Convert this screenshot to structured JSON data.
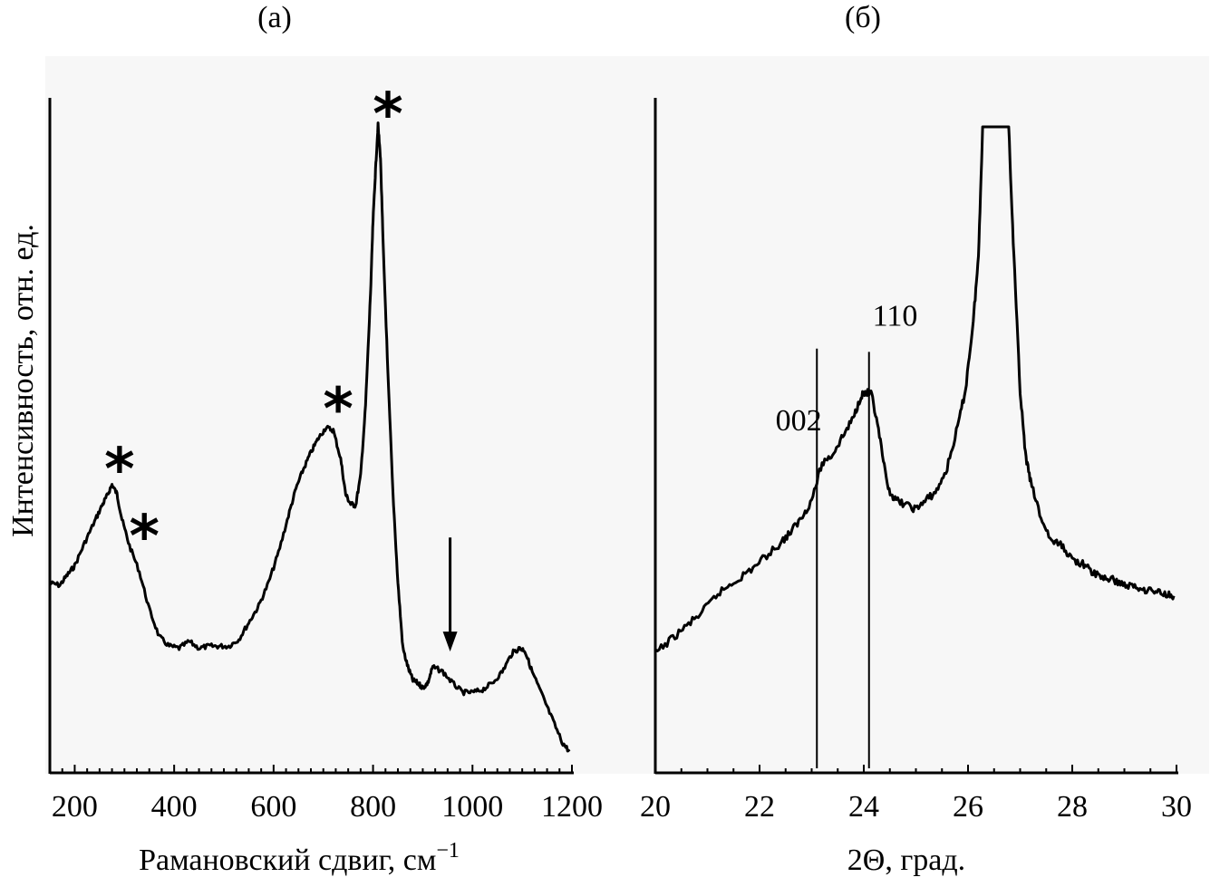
{
  "figure": {
    "background": "#f7f7f7",
    "line_color": "#000000"
  },
  "chart_data": [
    {
      "panel_label": "(а)",
      "type": "line",
      "xlabel_main": "Рамановский сдвиг, см",
      "xlabel_sup": "−1",
      "ylabel": "Интенсивность, отн. ед.",
      "xlim": [
        150,
        1200
      ],
      "ylim": [
        0,
        1
      ],
      "xticks": [
        200,
        400,
        600,
        800,
        1000,
        1200
      ],
      "xtick_labels": [
        "200",
        "400",
        "600",
        "800",
        "1000",
        "1200"
      ],
      "y_ticks_shown": false,
      "series": [
        {
          "x": [
            150,
            170,
            185,
            200,
            220,
            240,
            255,
            265,
            275,
            285,
            295,
            310,
            330,
            350,
            370,
            390,
            410,
            430,
            450,
            470,
            490,
            510,
            530,
            550,
            570,
            590,
            610,
            630,
            645,
            660,
            675,
            690,
            705,
            720,
            735,
            745,
            755,
            765,
            775,
            785,
            795,
            800,
            805,
            810,
            815,
            820,
            830,
            840,
            850,
            860,
            870,
            880,
            890,
            900,
            910,
            920,
            940,
            960,
            980,
            1000,
            1020,
            1040,
            1060,
            1080,
            1095,
            1105,
            1120,
            1140,
            1160,
            1180,
            1195
          ],
          "y": [
            0.237,
            0.234,
            0.249,
            0.263,
            0.297,
            0.329,
            0.353,
            0.367,
            0.384,
            0.37,
            0.332,
            0.293,
            0.254,
            0.198,
            0.157,
            0.143,
            0.14,
            0.15,
            0.14,
            0.143,
            0.143,
            0.143,
            0.153,
            0.178,
            0.203,
            0.238,
            0.283,
            0.338,
            0.378,
            0.407,
            0.432,
            0.453,
            0.469,
            0.465,
            0.422,
            0.369,
            0.355,
            0.353,
            0.397,
            0.502,
            0.67,
            0.778,
            0.853,
            0.92,
            0.871,
            0.749,
            0.547,
            0.372,
            0.237,
            0.14,
            0.112,
            0.092,
            0.088,
            0.081,
            0.088,
            0.112,
            0.105,
            0.088,
            0.074,
            0.074,
            0.078,
            0.088,
            0.105,
            0.133,
            0.14,
            0.137,
            0.105,
            0.07,
            0.035,
            0.0,
            -0.014
          ]
        }
      ],
      "annotations": [
        {
          "text": "*",
          "x": 290,
          "y": 0.415
        },
        {
          "text": "*",
          "x": 340,
          "y": 0.315
        },
        {
          "text": "*",
          "x": 730,
          "y": 0.505
        },
        {
          "text": "*",
          "x": 830,
          "y": 0.97
        }
      ],
      "arrow": {
        "x": 955,
        "y_from": 0.305,
        "y_to": 0.135
      }
    },
    {
      "panel_label": "(б)",
      "type": "line",
      "xlabel_main": "2Θ, град.",
      "ylabel": "",
      "xlim": [
        20,
        30
      ],
      "ylim": [
        0,
        1
      ],
      "xticks": [
        20,
        22,
        24,
        26,
        28,
        30
      ],
      "xtick_labels": [
        "20",
        "22",
        "24",
        "26",
        "28",
        "30"
      ],
      "y_ticks_shown": false,
      "series": [
        {
          "x": [
            20.0,
            20.3,
            20.6,
            20.9,
            21.2,
            21.5,
            21.8,
            22.1,
            22.4,
            22.6,
            22.8,
            23.0,
            23.2,
            23.4,
            23.6,
            23.8,
            23.95,
            24.05,
            24.15,
            24.3,
            24.45,
            24.6,
            24.8,
            25.0,
            25.2,
            25.4,
            25.6,
            25.8,
            25.95,
            26.1,
            26.2,
            26.28,
            26.5,
            26.78,
            26.88,
            27.0,
            27.1,
            27.2,
            27.4,
            27.6,
            27.8,
            28.0,
            28.2,
            28.4,
            28.6,
            28.8,
            29.0,
            29.2,
            29.4,
            29.6,
            29.8,
            29.95
          ],
          "y": [
            0.193,
            0.214,
            0.235,
            0.256,
            0.284,
            0.302,
            0.319,
            0.34,
            0.362,
            0.379,
            0.4,
            0.428,
            0.484,
            0.498,
            0.526,
            0.554,
            0.589,
            0.593,
            0.589,
            0.526,
            0.449,
            0.428,
            0.421,
            0.414,
            0.428,
            0.442,
            0.477,
            0.54,
            0.596,
            0.702,
            0.8,
            1.0,
            1.0,
            1.0,
            0.8,
            0.596,
            0.498,
            0.456,
            0.4,
            0.365,
            0.358,
            0.337,
            0.33,
            0.316,
            0.309,
            0.305,
            0.298,
            0.295,
            0.291,
            0.288,
            0.284,
            0.281
          ]
        }
      ],
      "annotations": [
        {
          "text": "002",
          "x": 22.75,
          "y": 0.535
        },
        {
          "text": "110",
          "x": 24.6,
          "y": 0.695
        }
      ],
      "reference_lines": [
        {
          "x": 23.1,
          "y_top": 0.66
        },
        {
          "x": 24.1,
          "y_top": 0.655
        }
      ]
    }
  ]
}
